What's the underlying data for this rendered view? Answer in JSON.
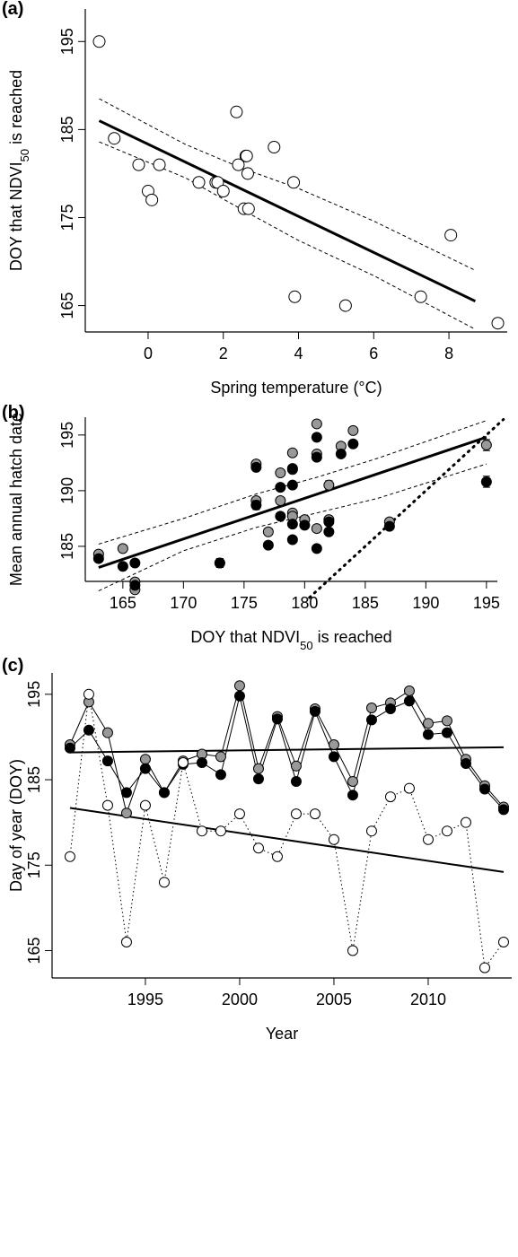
{
  "chart_data": [
    {
      "type": "scatter",
      "panel_label": "(a)",
      "xlabel": "Spring temperature (°C)",
      "ylabel": [
        "DOY that NDVI",
        "50",
        " is reached"
      ],
      "x": [
        -1.3,
        -0.9,
        -0.25,
        0.3,
        0.0,
        0.1,
        1.35,
        1.8,
        1.85,
        2.0,
        2.35,
        2.4,
        2.6,
        2.62,
        2.65,
        2.55,
        2.67,
        3.35,
        3.87,
        3.9,
        5.25,
        7.25,
        8.05,
        9.3
      ],
      "values": [
        195,
        184,
        181,
        181,
        178,
        177,
        179,
        179,
        179,
        178,
        187,
        181,
        182,
        182,
        180,
        176,
        176,
        183,
        179,
        166,
        165,
        166,
        173,
        163
      ],
      "marker": "open",
      "xlim": [
        -1.67,
        9.55
      ],
      "ylim": [
        162.0,
        198.7
      ],
      "xticks": [
        0,
        2,
        4,
        6,
        8
      ],
      "yticks": [
        165,
        175,
        185,
        195
      ],
      "fit": {
        "x": [
          -1.3,
          8.7
        ],
        "values": [
          186,
          165.5
        ]
      },
      "ci_upper": {
        "x": [
          -1.3,
          1,
          2.5,
          4,
          6,
          8.7
        ],
        "values": [
          188.5,
          183.3,
          180.6,
          178.3,
          174.6,
          169.0
        ]
      },
      "ci_lower": {
        "x": [
          -1.3,
          1,
          2.5,
          4,
          6,
          8.7
        ],
        "values": [
          183.6,
          179.5,
          175.9,
          172.4,
          168.4,
          162.3
        ]
      }
    },
    {
      "type": "scatter",
      "panel_label": "(b)",
      "xlabel": [
        "DOY that NDVI",
        "50",
        " is reached"
      ],
      "ylabel": "Mean annual hatch date",
      "x": [
        176,
        195,
        182,
        166,
        182,
        173,
        187,
        179,
        179,
        181,
        177,
        176,
        181,
        181,
        178,
        165,
        179,
        183,
        184,
        178,
        179,
        180,
        163,
        166
      ],
      "series": [
        {
          "color": "#999999",
          "values": [
            189.1,
            194.1,
            190.5,
            181.1,
            187.4,
            183.5,
            187.2,
            188.0,
            187.7,
            196.0,
            186.3,
            192.4,
            186.6,
            193.3,
            189.1,
            184.8,
            193.4,
            194.0,
            195.4,
            191.6,
            191.9,
            187.4,
            184.3,
            181.8
          ],
          "errors": [
            0.3,
            0.5,
            0.4,
            0.3,
            0.3,
            0.4,
            0.3,
            0.3,
            0.3,
            0.3,
            0.25,
            0.3,
            0.3,
            0.25,
            0.25,
            0.2,
            0.2,
            0.25,
            0.2,
            0.25,
            0.25,
            0.3,
            0.2,
            0.3
          ]
        },
        {
          "color": "#000000",
          "values": [
            188.7,
            190.8,
            187.2,
            183.5,
            186.3,
            183.5,
            186.8,
            187.0,
            185.6,
            194.8,
            185.1,
            192.1,
            184.8,
            193.0,
            187.7,
            183.2,
            192.0,
            193.3,
            194.2,
            190.3,
            190.5,
            186.9,
            183.9,
            181.5
          ],
          "errors": [
            0.4,
            0.5,
            0.3,
            0.3,
            0.3,
            0.4,
            0.25,
            0.25,
            0.25,
            0.3,
            0.25,
            0.25,
            0.25,
            0.25,
            0.25,
            0.2,
            0.2,
            0.25,
            0.2,
            0.25,
            0.25,
            0.2,
            0.2,
            0.3
          ]
        }
      ],
      "xlim": [
        161.9,
        195.9
      ],
      "ylim": [
        181.85,
        196.6
      ],
      "xticks": [
        165,
        170,
        175,
        180,
        185,
        190,
        195
      ],
      "yticks": [
        185,
        190,
        195
      ],
      "fit": {
        "x": [
          163,
          195
        ],
        "values": [
          183.1,
          194.8
        ]
      },
      "ci_upper": {
        "x": [
          163,
          170,
          176,
          181,
          186,
          195
        ],
        "values": [
          185.2,
          187.5,
          189.7,
          191.2,
          192.9,
          196.3
        ]
      },
      "ci_lower": {
        "x": [
          163,
          170,
          176,
          181,
          186,
          195
        ],
        "values": [
          181.0,
          184.6,
          186.7,
          188.0,
          189.3,
          192.4
        ]
      },
      "one_to_one": {
        "x": [
          180.4,
          196.4
        ],
        "values": [
          180.4,
          196.4
        ]
      }
    },
    {
      "type": "line",
      "panel_label": "(c)",
      "xlabel": "Year",
      "ylabel": "Day of year (DOY)",
      "x": [
        1991,
        1992,
        1993,
        1994,
        1995,
        1996,
        1997,
        1998,
        1999,
        2000,
        2001,
        2002,
        2003,
        2004,
        2005,
        2006,
        2007,
        2008,
        2009,
        2010,
        2011,
        2012,
        2013,
        2014
      ],
      "series": [
        {
          "color": "#999999",
          "line": "solid",
          "values": [
            189.1,
            194.1,
            190.5,
            181.1,
            187.4,
            183.5,
            187.2,
            188.0,
            187.7,
            196.0,
            186.3,
            192.4,
            186.6,
            193.3,
            189.1,
            184.8,
            193.4,
            194.0,
            195.4,
            191.6,
            191.9,
            187.4,
            184.3,
            181.8
          ]
        },
        {
          "color": "#000000",
          "line": "solid",
          "values": [
            188.7,
            190.8,
            187.2,
            183.5,
            186.3,
            183.5,
            186.8,
            187.0,
            185.6,
            194.8,
            185.1,
            192.1,
            184.8,
            193.0,
            187.7,
            183.2,
            192.0,
            193.3,
            194.2,
            190.3,
            190.5,
            186.9,
            183.9,
            181.5
          ]
        },
        {
          "color": "#ffffff",
          "line": "dotted",
          "values": [
            176,
            195,
            182,
            166,
            182,
            173,
            187,
            179,
            179,
            181,
            177,
            176,
            181,
            181,
            178,
            165,
            179,
            183,
            184,
            178,
            179,
            180,
            163,
            166
          ]
        }
      ],
      "trends": [
        {
          "x": [
            1991,
            2014
          ],
          "values": [
            188.2,
            188.8
          ]
        },
        {
          "x": [
            1991,
            2014
          ],
          "values": [
            181.7,
            174.2
          ]
        }
      ],
      "xlim": [
        1990.05,
        2014.43
      ],
      "ylim": [
        161.8,
        197.5
      ],
      "xticks": [
        1995,
        2000,
        2005,
        2010
      ],
      "yticks": [
        165,
        175,
        185,
        195
      ]
    }
  ]
}
